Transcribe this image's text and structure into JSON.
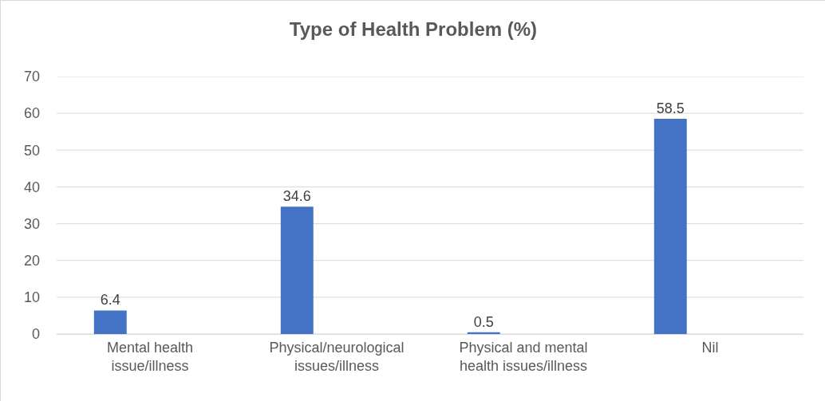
{
  "chart_data": {
    "type": "bar",
    "title": "Type of Health Problem (%)",
    "categories": [
      "Mental health issue/illness",
      "Physical/neurological issues/illness",
      "Physical and mental health issues/illness",
      "Nil"
    ],
    "values": [
      6.4,
      34.6,
      0.5,
      58.5
    ],
    "color": "#4472c4",
    "ylim": [
      0,
      70
    ],
    "yticks": [
      0,
      10,
      20,
      30,
      40,
      50,
      60,
      70
    ],
    "grid": "y",
    "data_labels": true
  }
}
